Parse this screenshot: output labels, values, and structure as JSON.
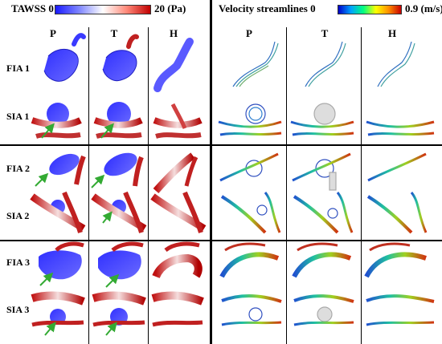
{
  "left_panel": {
    "legend_label": "TAWSS 0",
    "legend_max": "20 (Pa)",
    "columns": [
      "P",
      "T",
      "H"
    ]
  },
  "right_panel": {
    "legend_label": "Velocity streamlines 0",
    "legend_max": "0.9 (m/s)",
    "columns": [
      "P",
      "T",
      "H"
    ]
  },
  "rows": [
    "FIA 1",
    "SIA 1",
    "FIA 2",
    "SIA 2",
    "FIA 3",
    "SIA 3"
  ],
  "colors": {
    "tawss_low": "#1a1aff",
    "tawss_high": "#c00000",
    "arrow": "#33aa33"
  }
}
